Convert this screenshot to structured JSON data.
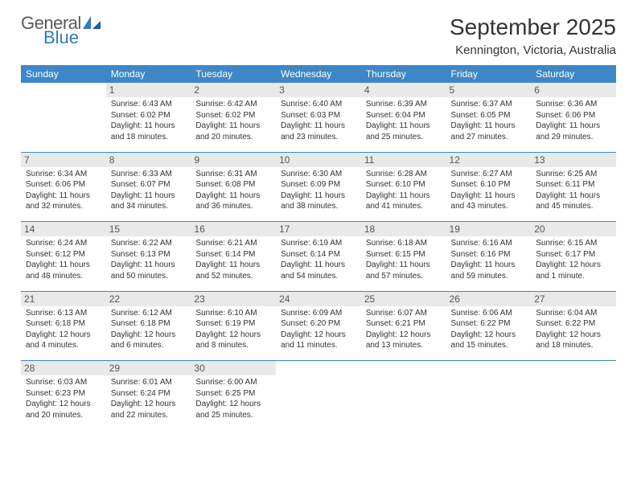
{
  "logo": {
    "text1": "General",
    "text2": "Blue",
    "accent": "#2f7ac0"
  },
  "title": "September 2025",
  "location": "Kennington, Victoria, Australia",
  "dow": [
    "Sunday",
    "Monday",
    "Tuesday",
    "Wednesday",
    "Thursday",
    "Friday",
    "Saturday"
  ],
  "colors": {
    "header_bg": "#3d87c7",
    "header_fg": "#ffffff",
    "daynum_bg": "#e9e9e9",
    "rule": "#3d87c7"
  },
  "weeks": [
    [
      {
        "n": "",
        "sr": "",
        "ss": "",
        "dl": ""
      },
      {
        "n": "1",
        "sr": "Sunrise: 6:43 AM",
        "ss": "Sunset: 6:02 PM",
        "dl": "Daylight: 11 hours and 18 minutes."
      },
      {
        "n": "2",
        "sr": "Sunrise: 6:42 AM",
        "ss": "Sunset: 6:02 PM",
        "dl": "Daylight: 11 hours and 20 minutes."
      },
      {
        "n": "3",
        "sr": "Sunrise: 6:40 AM",
        "ss": "Sunset: 6:03 PM",
        "dl": "Daylight: 11 hours and 23 minutes."
      },
      {
        "n": "4",
        "sr": "Sunrise: 6:39 AM",
        "ss": "Sunset: 6:04 PM",
        "dl": "Daylight: 11 hours and 25 minutes."
      },
      {
        "n": "5",
        "sr": "Sunrise: 6:37 AM",
        "ss": "Sunset: 6:05 PM",
        "dl": "Daylight: 11 hours and 27 minutes."
      },
      {
        "n": "6",
        "sr": "Sunrise: 6:36 AM",
        "ss": "Sunset: 6:06 PM",
        "dl": "Daylight: 11 hours and 29 minutes."
      }
    ],
    [
      {
        "n": "7",
        "sr": "Sunrise: 6:34 AM",
        "ss": "Sunset: 6:06 PM",
        "dl": "Daylight: 11 hours and 32 minutes."
      },
      {
        "n": "8",
        "sr": "Sunrise: 6:33 AM",
        "ss": "Sunset: 6:07 PM",
        "dl": "Daylight: 11 hours and 34 minutes."
      },
      {
        "n": "9",
        "sr": "Sunrise: 6:31 AM",
        "ss": "Sunset: 6:08 PM",
        "dl": "Daylight: 11 hours and 36 minutes."
      },
      {
        "n": "10",
        "sr": "Sunrise: 6:30 AM",
        "ss": "Sunset: 6:09 PM",
        "dl": "Daylight: 11 hours and 38 minutes."
      },
      {
        "n": "11",
        "sr": "Sunrise: 6:28 AM",
        "ss": "Sunset: 6:10 PM",
        "dl": "Daylight: 11 hours and 41 minutes."
      },
      {
        "n": "12",
        "sr": "Sunrise: 6:27 AM",
        "ss": "Sunset: 6:10 PM",
        "dl": "Daylight: 11 hours and 43 minutes."
      },
      {
        "n": "13",
        "sr": "Sunrise: 6:25 AM",
        "ss": "Sunset: 6:11 PM",
        "dl": "Daylight: 11 hours and 45 minutes."
      }
    ],
    [
      {
        "n": "14",
        "sr": "Sunrise: 6:24 AM",
        "ss": "Sunset: 6:12 PM",
        "dl": "Daylight: 11 hours and 48 minutes."
      },
      {
        "n": "15",
        "sr": "Sunrise: 6:22 AM",
        "ss": "Sunset: 6:13 PM",
        "dl": "Daylight: 11 hours and 50 minutes."
      },
      {
        "n": "16",
        "sr": "Sunrise: 6:21 AM",
        "ss": "Sunset: 6:14 PM",
        "dl": "Daylight: 11 hours and 52 minutes."
      },
      {
        "n": "17",
        "sr": "Sunrise: 6:19 AM",
        "ss": "Sunset: 6:14 PM",
        "dl": "Daylight: 11 hours and 54 minutes."
      },
      {
        "n": "18",
        "sr": "Sunrise: 6:18 AM",
        "ss": "Sunset: 6:15 PM",
        "dl": "Daylight: 11 hours and 57 minutes."
      },
      {
        "n": "19",
        "sr": "Sunrise: 6:16 AM",
        "ss": "Sunset: 6:16 PM",
        "dl": "Daylight: 11 hours and 59 minutes."
      },
      {
        "n": "20",
        "sr": "Sunrise: 6:15 AM",
        "ss": "Sunset: 6:17 PM",
        "dl": "Daylight: 12 hours and 1 minute."
      }
    ],
    [
      {
        "n": "21",
        "sr": "Sunrise: 6:13 AM",
        "ss": "Sunset: 6:18 PM",
        "dl": "Daylight: 12 hours and 4 minutes."
      },
      {
        "n": "22",
        "sr": "Sunrise: 6:12 AM",
        "ss": "Sunset: 6:18 PM",
        "dl": "Daylight: 12 hours and 6 minutes."
      },
      {
        "n": "23",
        "sr": "Sunrise: 6:10 AM",
        "ss": "Sunset: 6:19 PM",
        "dl": "Daylight: 12 hours and 8 minutes."
      },
      {
        "n": "24",
        "sr": "Sunrise: 6:09 AM",
        "ss": "Sunset: 6:20 PM",
        "dl": "Daylight: 12 hours and 11 minutes."
      },
      {
        "n": "25",
        "sr": "Sunrise: 6:07 AM",
        "ss": "Sunset: 6:21 PM",
        "dl": "Daylight: 12 hours and 13 minutes."
      },
      {
        "n": "26",
        "sr": "Sunrise: 6:06 AM",
        "ss": "Sunset: 6:22 PM",
        "dl": "Daylight: 12 hours and 15 minutes."
      },
      {
        "n": "27",
        "sr": "Sunrise: 6:04 AM",
        "ss": "Sunset: 6:22 PM",
        "dl": "Daylight: 12 hours and 18 minutes."
      }
    ],
    [
      {
        "n": "28",
        "sr": "Sunrise: 6:03 AM",
        "ss": "Sunset: 6:23 PM",
        "dl": "Daylight: 12 hours and 20 minutes."
      },
      {
        "n": "29",
        "sr": "Sunrise: 6:01 AM",
        "ss": "Sunset: 6:24 PM",
        "dl": "Daylight: 12 hours and 22 minutes."
      },
      {
        "n": "30",
        "sr": "Sunrise: 6:00 AM",
        "ss": "Sunset: 6:25 PM",
        "dl": "Daylight: 12 hours and 25 minutes."
      },
      {
        "n": "",
        "sr": "",
        "ss": "",
        "dl": ""
      },
      {
        "n": "",
        "sr": "",
        "ss": "",
        "dl": ""
      },
      {
        "n": "",
        "sr": "",
        "ss": "",
        "dl": ""
      },
      {
        "n": "",
        "sr": "",
        "ss": "",
        "dl": ""
      }
    ]
  ]
}
